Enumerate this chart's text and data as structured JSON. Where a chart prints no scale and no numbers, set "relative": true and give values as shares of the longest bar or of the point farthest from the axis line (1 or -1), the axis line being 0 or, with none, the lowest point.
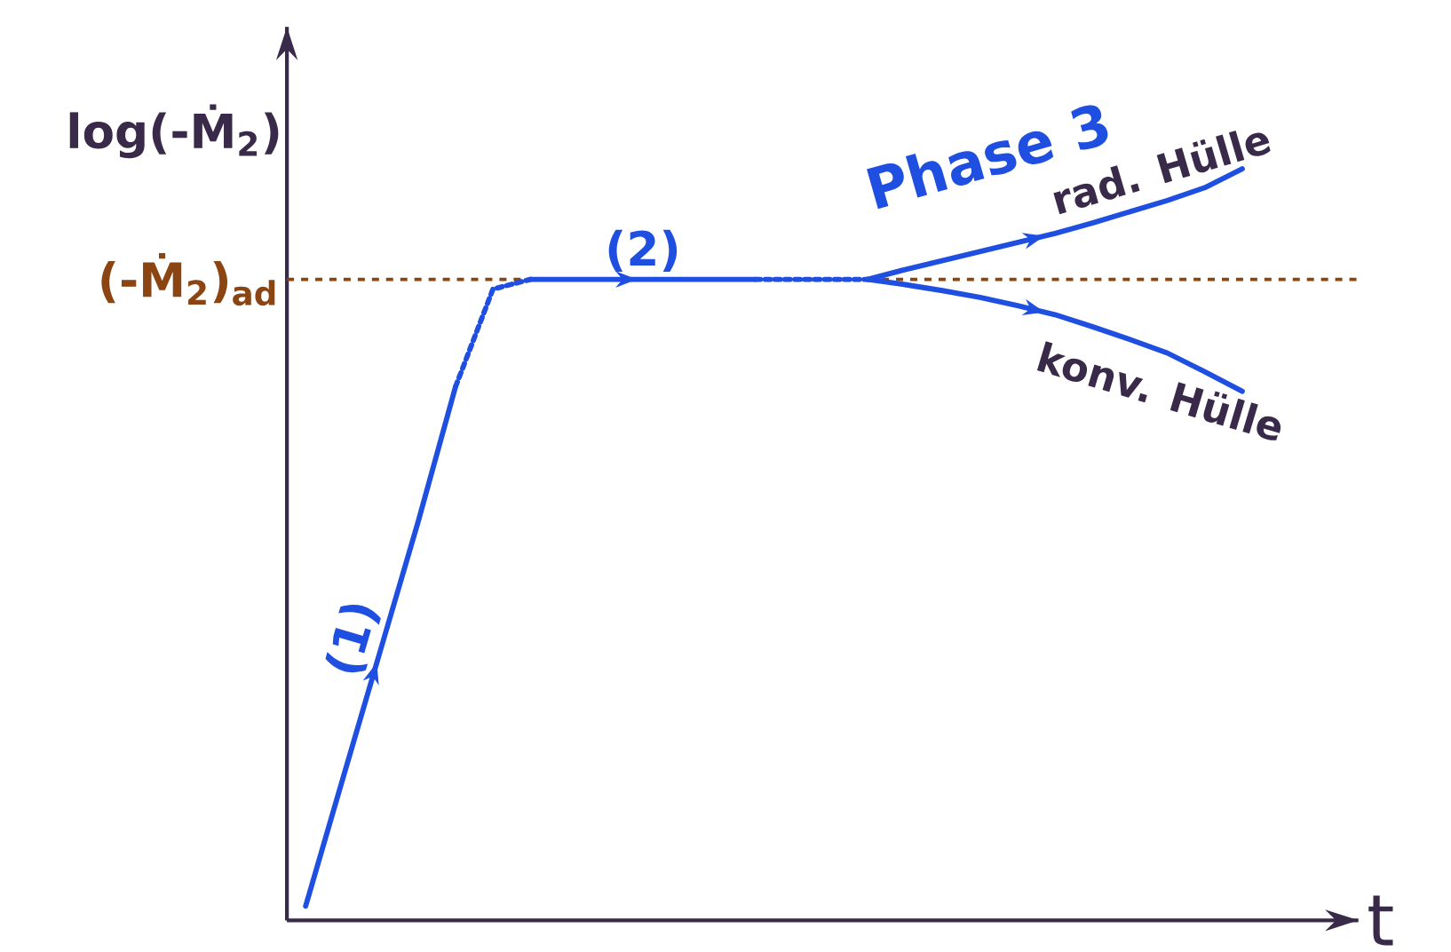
{
  "chart_data": {
    "type": "line",
    "relative": true,
    "ylabel": "log(-Ṁ$_{2}$)",
    "xlabel": "t",
    "categories": [
      null,
      null,
      null,
      null,
      null,
      null,
      null,
      null,
      null,
      null,
      null,
      null,
      null,
      null,
      null,
      null,
      null,
      null,
      null,
      null,
      null,
      null,
      null,
      null,
      null,
      null
    ],
    "series": [
      {
        "name": "(1)",
        "color": "#1e4fe0",
        "line_style": "solid",
        "values": [
          0.019,
          0.19,
          0.36,
          0.53,
          0.71,
          null,
          null,
          null,
          null,
          null,
          null,
          null,
          null,
          null,
          null,
          null,
          null,
          null,
          null,
          null,
          null,
          null,
          null,
          null,
          null,
          null
        ]
      },
      {
        "color": "#1e4fe0",
        "line_style": "dotted",
        "values": [
          null,
          null,
          null,
          null,
          0.71,
          0.84,
          0.853,
          null,
          null,
          null,
          null,
          null,
          null,
          null,
          null,
          null,
          null,
          null,
          null,
          null,
          null,
          null,
          null,
          null,
          null,
          null
        ]
      },
      {
        "name": "(2)",
        "color": "#1e4fe0",
        "line_style": "solid",
        "values": [
          null,
          null,
          null,
          null,
          null,
          null,
          0.853,
          0.853,
          0.853,
          0.853,
          0.853,
          0.853,
          0.853,
          null,
          null,
          null,
          null,
          null,
          null,
          null,
          null,
          null,
          null,
          null,
          null,
          null
        ]
      },
      {
        "color": "#1e4fe0",
        "line_style": "dotted",
        "values": [
          null,
          null,
          null,
          null,
          null,
          null,
          null,
          null,
          null,
          null,
          null,
          null,
          0.853,
          0.853,
          0.853,
          0.853,
          null,
          null,
          null,
          null,
          null,
          null,
          null,
          null,
          null,
          null
        ]
      },
      {
        "name": "rad. Hülle",
        "color": "#1e4fe0",
        "line_style": "solid",
        "values": [
          null,
          null,
          null,
          null,
          null,
          null,
          null,
          null,
          null,
          null,
          null,
          null,
          null,
          null,
          null,
          0.853,
          0.866,
          0.878,
          0.89,
          0.902,
          0.914,
          0.928,
          0.943,
          0.958,
          0.975,
          1
        ]
      },
      {
        "name": "konv. Hülle",
        "color": "#1e4fe0",
        "line_style": "solid",
        "values": [
          null,
          null,
          null,
          null,
          null,
          null,
          null,
          null,
          null,
          null,
          null,
          null,
          null,
          null,
          null,
          0.853,
          0.846,
          0.838,
          0.829,
          0.818,
          0.806,
          0.79,
          0.773,
          0.755,
          0.73,
          0.704
        ]
      }
    ],
    "ref_lines": [
      {
        "axis": "y",
        "value": 0.853,
        "label": "(-Ṁ$_{2}$)$_{ad}$",
        "color": "#8b4513",
        "line_style": "dashed"
      }
    ],
    "annotations": [
      "Phase 3"
    ]
  }
}
